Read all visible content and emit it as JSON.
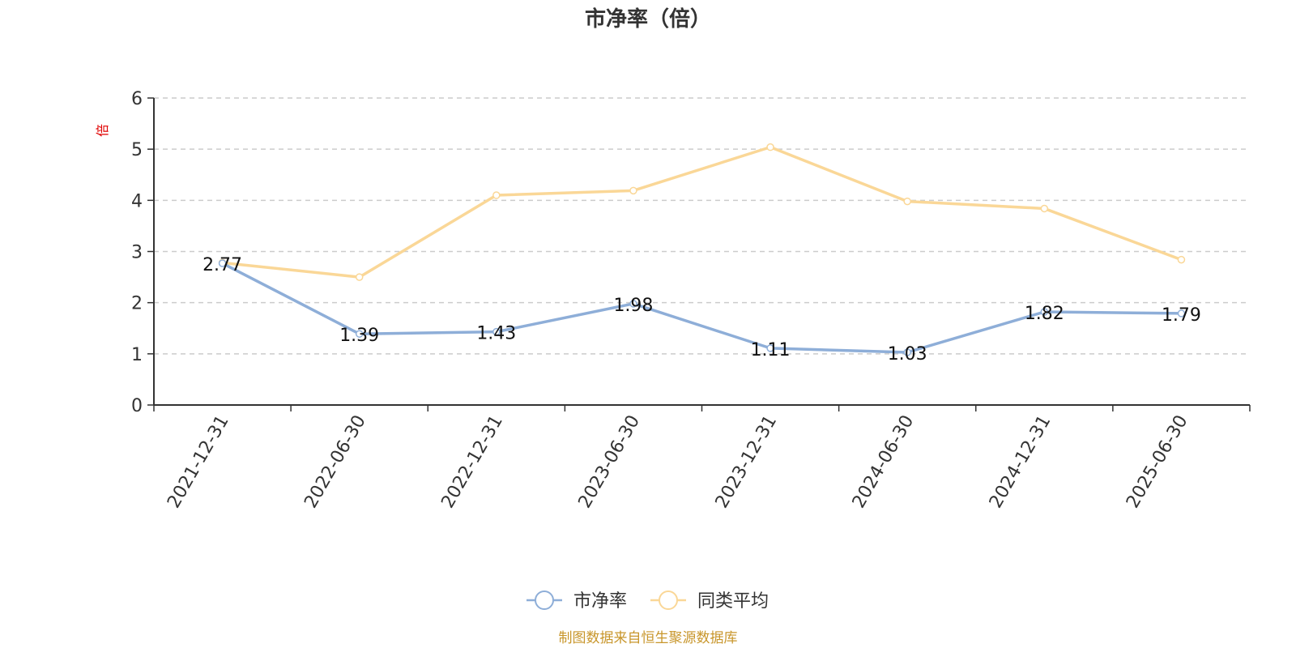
{
  "chart_data": {
    "type": "line",
    "title": "市净率（倍）",
    "ylabel": "倍",
    "xlabel": "",
    "categories": [
      "2021-12-31",
      "2022-06-30",
      "2022-12-31",
      "2023-06-30",
      "2023-12-31",
      "2024-06-30",
      "2024-12-31",
      "2025-06-30"
    ],
    "ylim": [
      0,
      6
    ],
    "yticks": [
      0,
      1,
      2,
      3,
      4,
      5,
      6
    ],
    "grid": true,
    "legend_position": "bottom",
    "series": [
      {
        "name": "市净率",
        "color": "#8eaed8",
        "values": [
          2.77,
          1.39,
          1.43,
          1.98,
          1.11,
          1.03,
          1.82,
          1.79
        ],
        "labels": [
          "2.77",
          "1.39",
          "1.43",
          "1.98",
          "1.11",
          "1.03",
          "1.82",
          "1.79"
        ]
      },
      {
        "name": "同类平均",
        "color": "#fad797",
        "values": [
          2.78,
          2.5,
          4.1,
          4.19,
          5.04,
          3.98,
          3.84,
          2.84
        ]
      }
    ],
    "source": "制图数据来自恒生聚源数据库"
  }
}
